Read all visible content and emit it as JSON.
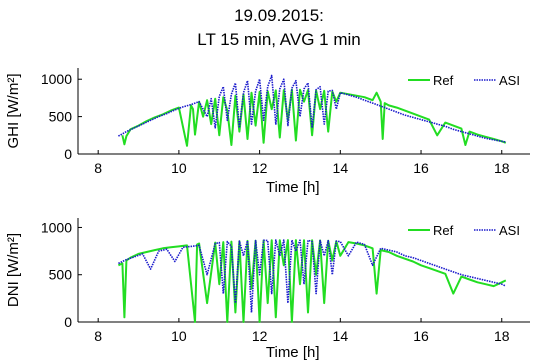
{
  "figure": {
    "title_line1": "19.09.2015:",
    "title_line2": "LT  15 min, AVG  1 min"
  },
  "chart_data": [
    {
      "type": "line",
      "panel": "top",
      "xlabel": "Time [h]",
      "ylabel": "GHI [W/m²]",
      "xlim": [
        7.5,
        18.7
      ],
      "ylim": [
        0,
        1150
      ],
      "xticks": [
        8,
        10,
        12,
        14,
        16,
        18
      ],
      "yticks": [
        0,
        500,
        1000
      ],
      "legend": "top-right",
      "series": [
        {
          "name": "Ref",
          "color": "#22dd22",
          "style": "solid",
          "x": [
            8.6,
            8.65,
            8.7,
            8.8,
            9.0,
            9.2,
            9.4,
            9.6,
            9.8,
            10.0,
            10.2,
            10.3,
            10.35,
            10.4,
            10.5,
            10.6,
            10.7,
            10.8,
            10.9,
            11.0,
            11.1,
            11.2,
            11.3,
            11.4,
            11.5,
            11.6,
            11.7,
            11.8,
            11.9,
            12.0,
            12.1,
            12.2,
            12.3,
            12.4,
            12.5,
            12.6,
            12.7,
            12.8,
            12.9,
            13.0,
            13.1,
            13.2,
            13.3,
            13.4,
            13.5,
            13.6,
            13.7,
            13.8,
            13.9,
            14.0,
            14.2,
            14.4,
            14.6,
            14.8,
            14.9,
            15.0,
            15.05,
            15.1,
            15.2,
            15.4,
            15.6,
            15.8,
            16.0,
            16.2,
            16.4,
            16.6,
            16.8,
            17.0,
            17.1,
            17.2,
            17.3,
            17.4,
            17.6,
            17.8,
            18.0,
            18.1
          ],
          "y": [
            250,
            130,
            240,
            330,
            380,
            440,
            490,
            530,
            580,
            620,
            110,
            650,
            600,
            260,
            700,
            500,
            720,
            400,
            740,
            250,
            760,
            580,
            120,
            780,
            300,
            800,
            200,
            820,
            380,
            830,
            150,
            840,
            600,
            850,
            220,
            855,
            450,
            860,
            180,
            860,
            700,
            855,
            250,
            850,
            600,
            845,
            300,
            835,
            700,
            820,
            800,
            780,
            760,
            720,
            820,
            700,
            200,
            680,
            650,
            620,
            580,
            540,
            500,
            460,
            250,
            420,
            380,
            340,
            120,
            300,
            280,
            260,
            230,
            200,
            170,
            150
          ]
        },
        {
          "name": "ASI",
          "color": "#1a1acc",
          "style": "dotted",
          "x": [
            8.5,
            8.7,
            8.9,
            9.1,
            9.3,
            9.5,
            9.7,
            9.9,
            10.1,
            10.3,
            10.5,
            10.7,
            10.8,
            10.9,
            11.0,
            11.1,
            11.2,
            11.3,
            11.4,
            11.5,
            11.6,
            11.7,
            11.8,
            11.9,
            12.0,
            12.1,
            12.2,
            12.3,
            12.4,
            12.5,
            12.6,
            12.7,
            12.8,
            12.9,
            13.0,
            13.1,
            13.2,
            13.3,
            13.4,
            13.5,
            13.6,
            13.7,
            13.8,
            13.9,
            14.0,
            14.2,
            14.4,
            14.6,
            14.8,
            15.0,
            15.2,
            15.4,
            15.6,
            15.8,
            16.0,
            16.2,
            16.4,
            16.6,
            16.8,
            17.0,
            17.2,
            17.4,
            17.6,
            17.8,
            18.0,
            18.1
          ],
          "y": [
            240,
            300,
            350,
            400,
            450,
            500,
            540,
            590,
            630,
            660,
            700,
            500,
            740,
            350,
            770,
            900,
            450,
            800,
            950,
            350,
            820,
            980,
            400,
            840,
            1000,
            450,
            900,
            1050,
            400,
            870,
            1000,
            380,
            880,
            980,
            500,
            870,
            950,
            350,
            860,
            900,
            400,
            840,
            850,
            600,
            820,
            790,
            760,
            720,
            680,
            640,
            600,
            560,
            520,
            490,
            460,
            430,
            400,
            370,
            330,
            300,
            270,
            240,
            210,
            190,
            170,
            160
          ]
        }
      ]
    },
    {
      "type": "line",
      "panel": "bottom",
      "xlabel": "Time [h]",
      "ylabel": "DNI [W/m²]",
      "xlim": [
        7.5,
        18.7
      ],
      "ylim": [
        0,
        1100
      ],
      "xticks": [
        8,
        10,
        12,
        14,
        16,
        18
      ],
      "yticks": [
        0,
        500,
        1000
      ],
      "legend": "top-right",
      "series": [
        {
          "name": "Ref",
          "color": "#22dd22",
          "style": "solid",
          "x": [
            8.5,
            8.6,
            8.65,
            8.7,
            8.8,
            9.0,
            9.2,
            9.4,
            9.6,
            9.8,
            10.0,
            10.2,
            10.4,
            10.45,
            10.5,
            10.7,
            10.9,
            11.0,
            11.1,
            11.2,
            11.3,
            11.4,
            11.5,
            11.6,
            11.7,
            11.8,
            11.9,
            12.0,
            12.1,
            12.2,
            12.3,
            12.4,
            12.5,
            12.6,
            12.7,
            12.8,
            12.9,
            13.0,
            13.1,
            13.2,
            13.3,
            13.4,
            13.5,
            13.6,
            13.7,
            13.8,
            13.9,
            14.0,
            14.2,
            14.4,
            14.6,
            14.8,
            14.9,
            15.0,
            15.2,
            15.4,
            15.6,
            15.8,
            16.0,
            16.2,
            16.4,
            16.6,
            16.8,
            17.0,
            17.2,
            17.4,
            17.6,
            17.8,
            18.0,
            18.1
          ],
          "y": [
            600,
            620,
            50,
            650,
            680,
            720,
            740,
            760,
            780,
            790,
            800,
            810,
            0,
            820,
            830,
            200,
            840,
            400,
            845,
            0,
            850,
            100,
            855,
            0,
            858,
            350,
            860,
            0,
            862,
            200,
            864,
            50,
            865,
            600,
            866,
            0,
            866,
            400,
            865,
            100,
            864,
            500,
            862,
            200,
            860,
            650,
            855,
            700,
            845,
            830,
            810,
            780,
            300,
            760,
            740,
            700,
            670,
            640,
            600,
            570,
            540,
            510,
            300,
            480,
            450,
            420,
            400,
            380,
            420,
            440
          ]
        },
        {
          "name": "ASI",
          "color": "#1a1acc",
          "style": "dotted",
          "x": [
            8.5,
            8.7,
            8.9,
            9.1,
            9.3,
            9.5,
            9.7,
            9.9,
            10.1,
            10.3,
            10.5,
            10.7,
            10.9,
            11.0,
            11.1,
            11.2,
            11.3,
            11.4,
            11.5,
            11.6,
            11.7,
            11.8,
            11.9,
            12.0,
            12.1,
            12.2,
            12.3,
            12.4,
            12.5,
            12.6,
            12.7,
            12.8,
            12.9,
            13.0,
            13.1,
            13.2,
            13.3,
            13.4,
            13.5,
            13.6,
            13.7,
            13.8,
            13.9,
            14.0,
            14.2,
            14.4,
            14.6,
            14.8,
            15.0,
            15.2,
            15.4,
            15.6,
            15.8,
            16.0,
            16.2,
            16.4,
            16.6,
            16.8,
            17.0,
            17.2,
            17.4,
            17.6,
            17.8,
            18.0,
            18.1
          ],
          "y": [
            620,
            660,
            690,
            720,
            560,
            750,
            770,
            640,
            790,
            800,
            810,
            500,
            830,
            840,
            300,
            850,
            800,
            200,
            855,
            700,
            860,
            100,
            862,
            500,
            864,
            862,
            300,
            866,
            700,
            866,
            200,
            866,
            750,
            865,
            400,
            864,
            850,
            300,
            862,
            700,
            860,
            500,
            855,
            850,
            700,
            845,
            820,
            600,
            780,
            760,
            740,
            700,
            680,
            650,
            620,
            590,
            560,
            530,
            500,
            480,
            460,
            440,
            420,
            400,
            380
          ]
        }
      ]
    }
  ]
}
